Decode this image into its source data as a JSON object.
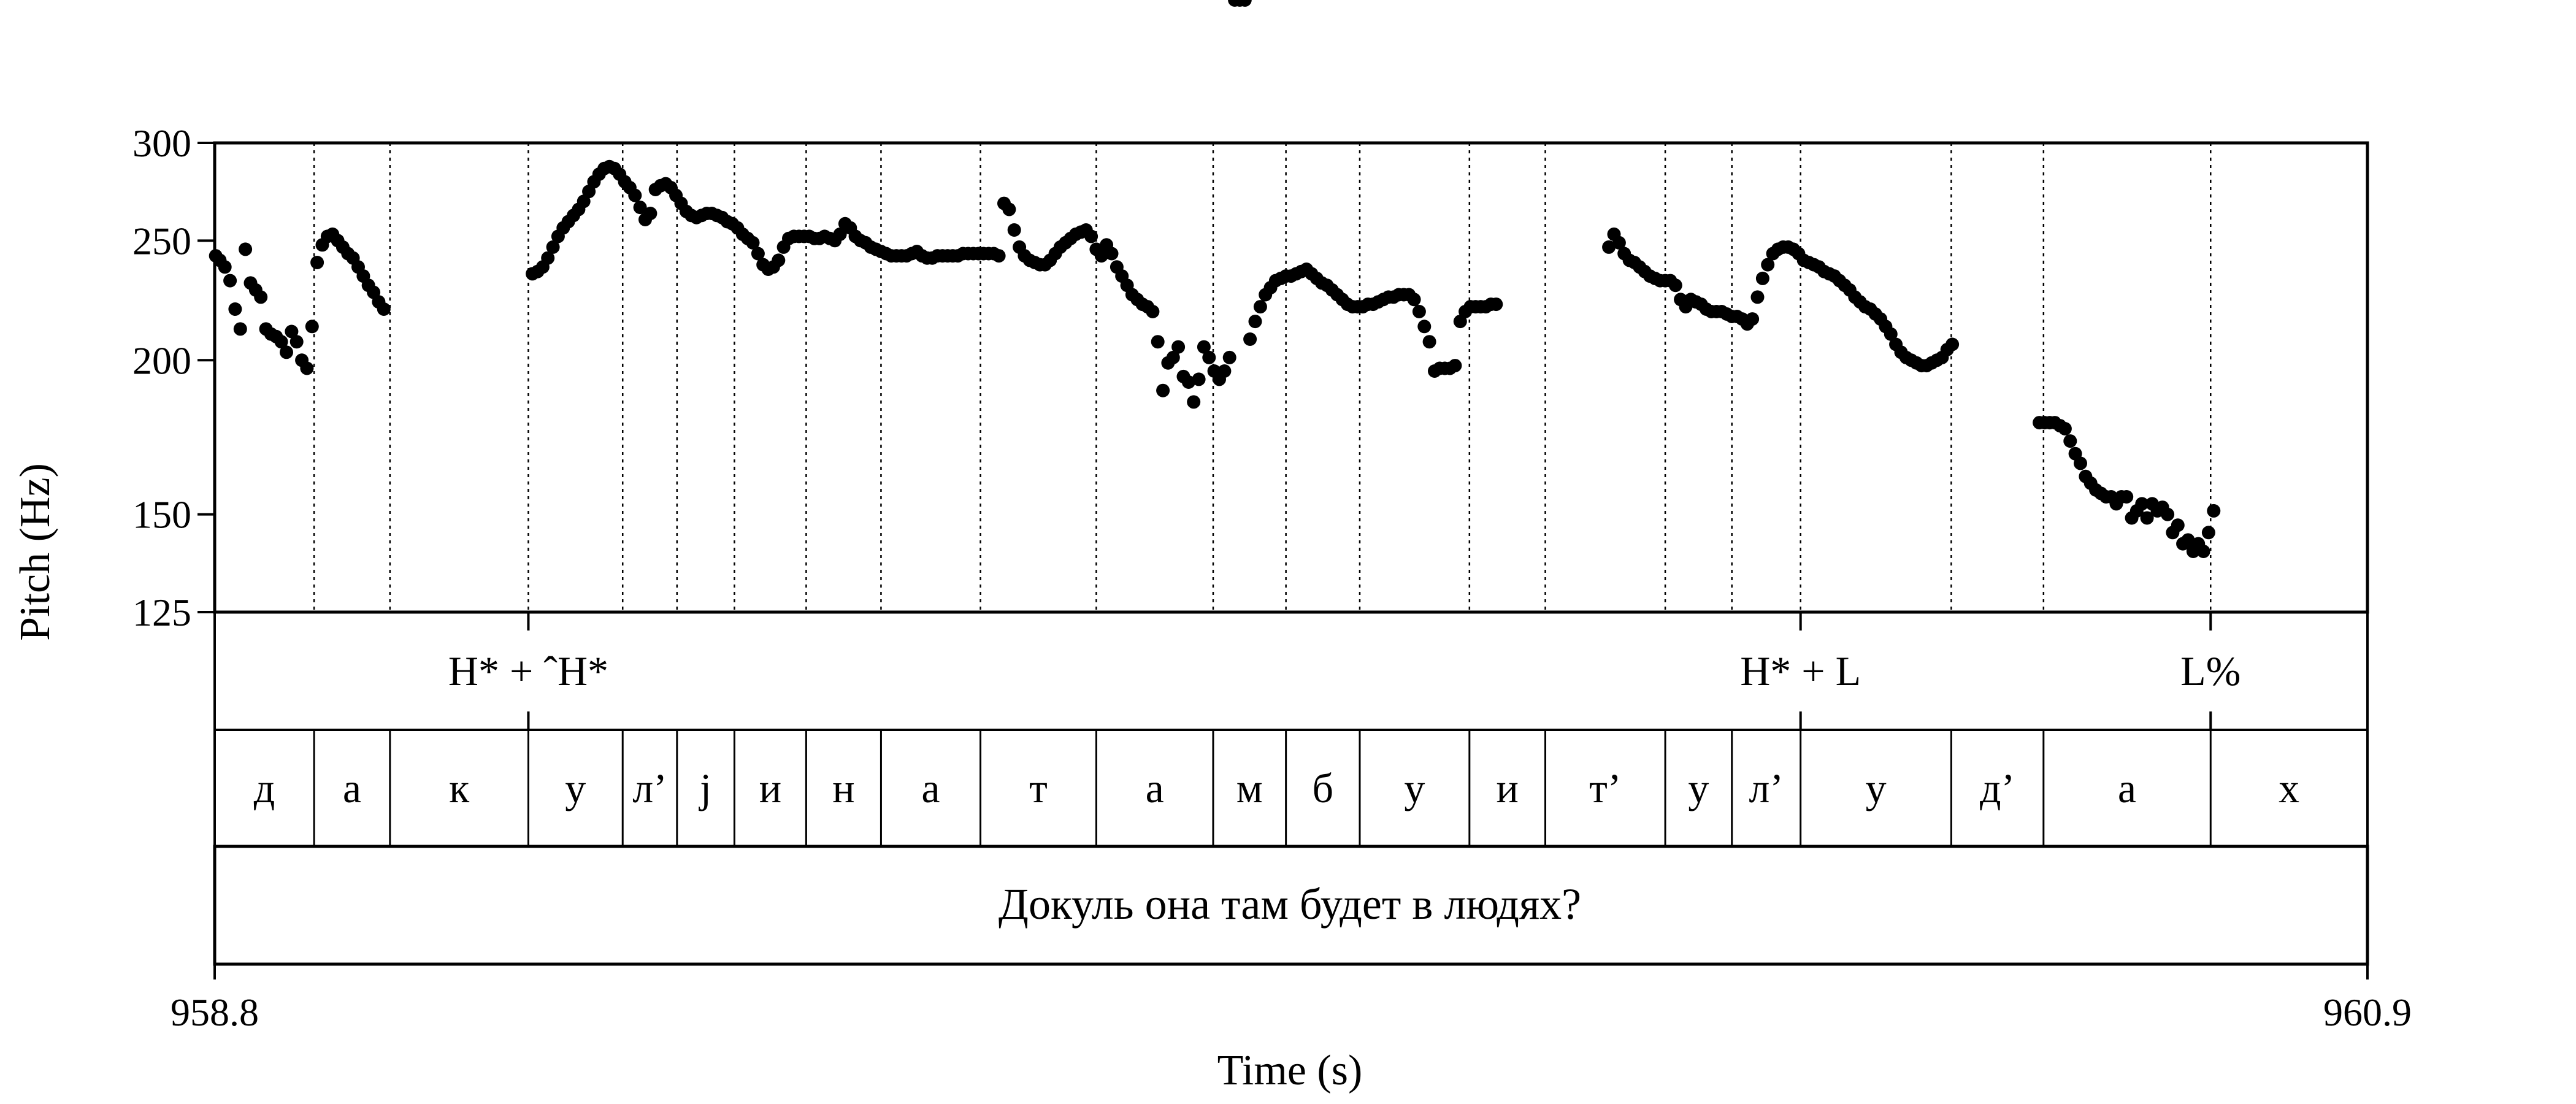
{
  "chart_data": {
    "type": "scatter",
    "xlabel": "Time (s)",
    "ylabel": "Pitch (Hz)",
    "xlim": [
      958.8,
      960.9
    ],
    "ylim": [
      125,
      300
    ],
    "x_tick_labels": [
      "958.8",
      "960.9"
    ],
    "y_ticks": [
      300,
      250,
      200,
      150,
      125
    ],
    "y_tick_labels": [
      "300",
      "250",
      "200",
      "150",
      "125"
    ],
    "segment_boundaries": [
      958.8,
      958.897,
      958.971,
      959.106,
      959.198,
      959.251,
      959.307,
      959.377,
      959.45,
      959.547,
      959.66,
      959.774,
      959.845,
      959.917,
      960.024,
      960.098,
      960.215,
      960.28,
      960.347,
      960.494,
      960.584,
      960.747,
      960.9
    ],
    "pitch_contour": [
      {
        "t": [
          958.801,
          958.805,
          958.81,
          958.815,
          958.82,
          958.825,
          958.83,
          958.835,
          958.84,
          958.845,
          958.85,
          958.855,
          958.86,
          958.865,
          958.87,
          958.875,
          958.88,
          958.885,
          958.89,
          958.895
        ],
        "f0": [
          243,
          241,
          238,
          232,
          220,
          212,
          246,
          231,
          228,
          225,
          212,
          210,
          209,
          207,
          203,
          211,
          207,
          200,
          197,
          213
        ]
      },
      {
        "t": [
          958.9,
          958.905,
          958.91,
          958.915,
          958.92,
          958.925,
          958.93,
          958.935,
          958.94,
          958.945,
          958.95,
          958.955,
          958.96,
          958.965
        ],
        "f0": [
          240,
          248,
          252,
          253,
          250,
          247,
          244,
          242,
          238,
          234,
          230,
          227,
          223,
          220
        ]
      },
      {
        "t": [
          959.11,
          959.115,
          959.12,
          959.125,
          959.13,
          959.135,
          959.14,
          959.145,
          959.15,
          959.155,
          959.16,
          959.165,
          959.17,
          959.175,
          959.18,
          959.185,
          959.19,
          959.195,
          959.2,
          959.205,
          959.21,
          959.215,
          959.22,
          959.225,
          959.23,
          959.235,
          959.24,
          959.245,
          959.25,
          959.255,
          959.26,
          959.265,
          959.27,
          959.275,
          959.28,
          959.285,
          959.29,
          959.295,
          959.3,
          959.305,
          959.31,
          959.315,
          959.32,
          959.325,
          959.33,
          959.335,
          959.34,
          959.345,
          959.35,
          959.355,
          959.36,
          959.365,
          959.37,
          959.375,
          959.38,
          959.385,
          959.39,
          959.395,
          959.4,
          959.405,
          959.41,
          959.415,
          959.42,
          959.425,
          959.43,
          959.435,
          959.44,
          959.445,
          959.45,
          959.455,
          959.46,
          959.465,
          959.47,
          959.475,
          959.48,
          959.485,
          959.49,
          959.495,
          959.5,
          959.505,
          959.51,
          959.515,
          959.52,
          959.525,
          959.53,
          959.535,
          959.54,
          959.545,
          959.55,
          959.555,
          959.56,
          959.565,
          959.57,
          959.575,
          959.58,
          959.585,
          959.59,
          959.595,
          959.6,
          959.605,
          959.61,
          959.615,
          959.62,
          959.625,
          959.63,
          959.635,
          959.64,
          959.645,
          959.65,
          959.655,
          959.66,
          959.665,
          959.67,
          959.675,
          959.68,
          959.685,
          959.69,
          959.695,
          959.7,
          959.705,
          959.71,
          959.715,
          959.72,
          959.725,
          959.73,
          959.735,
          959.74,
          959.745,
          959.75,
          959.755,
          959.76,
          959.765,
          959.77,
          959.775,
          959.78,
          959.785,
          959.79,
          959.795,
          959.8,
          959.805
        ],
        "f0": [
          235,
          236,
          238,
          242,
          247,
          252,
          256,
          259,
          262,
          265,
          269,
          274,
          279,
          283,
          286,
          287,
          286,
          283,
          279,
          276,
          272,
          266,
          260,
          263,
          275,
          277,
          278,
          276,
          272,
          268,
          264,
          262,
          261,
          262,
          263,
          263,
          262,
          261,
          259,
          258,
          256,
          253,
          251,
          249,
          244,
          239,
          237,
          238,
          241,
          247,
          251,
          252,
          252,
          252,
          252,
          251,
          251,
          252,
          251,
          250,
          253,
          258,
          256,
          252,
          250,
          249,
          247,
          246,
          245,
          244,
          243,
          243,
          243,
          243,
          244,
          245,
          243,
          242,
          242,
          243,
          243,
          243,
          243,
          243,
          244,
          244,
          244,
          244,
          244,
          244,
          244,
          243,
          268,
          265,
          255,
          247,
          243,
          241,
          240,
          239,
          239,
          241,
          244,
          247,
          249,
          251,
          253,
          254,
          255,
          252,
          246,
          243,
          248,
          244,
          238,
          234,
          230,
          226,
          224,
          222,
          221,
          219,
          207,
          189,
          199,
          201,
          205,
          194,
          192,
          185,
          193,
          205,
          201,
          196,
          193,
          196,
          201
        ]
      },
      {
        "t": [
          959.81,
          959.815,
          959.82,
          959.825,
          959.83,
          959.835,
          959.84,
          959.845,
          959.85,
          959.855,
          959.86,
          959.865,
          959.87,
          959.875,
          959.88,
          959.885,
          959.89,
          959.895,
          959.9,
          959.905,
          959.91,
          959.915,
          959.92,
          959.925,
          959.93,
          959.935,
          959.94,
          959.945,
          959.95,
          959.955,
          959.96,
          959.965,
          959.97,
          959.975,
          959.98,
          959.985,
          959.99,
          959.995,
          960.0,
          960.005,
          960.01,
          960.015,
          960.02,
          960.025,
          960.03,
          960.035,
          960.04,
          960.045,
          960.05
        ],
        "f0": [
          208,
          215,
          221,
          226,
          229,
          232,
          233,
          234,
          234,
          235,
          236,
          237,
          235,
          233,
          231,
          230,
          228,
          226,
          224,
          222,
          221,
          221,
          221,
          222,
          222,
          223,
          224,
          225,
          225,
          226,
          226,
          226,
          224,
          219,
          213,
          207,
          196,
          197,
          197,
          197,
          198,
          215,
          219,
          221,
          221,
          221,
          221,
          222,
          222
        ]
      },
      {
        "t": [
          960.16,
          960.165,
          960.17,
          960.175,
          960.18,
          960.185,
          960.19,
          960.195,
          960.2,
          960.205,
          960.21,
          960.215,
          960.22,
          960.225,
          960.23,
          960.235,
          960.24,
          960.245,
          960.25,
          960.255,
          960.26,
          960.265,
          960.27,
          960.275,
          960.28,
          960.285,
          960.29,
          960.295,
          960.3,
          960.305,
          960.31,
          960.315,
          960.32,
          960.325,
          960.33,
          960.335,
          960.34,
          960.345,
          960.35,
          960.355,
          960.36,
          960.365,
          960.37,
          960.375,
          960.38,
          960.385,
          960.39,
          960.395,
          960.4,
          960.405,
          960.41,
          960.415,
          960.42,
          960.425,
          960.43,
          960.435,
          960.44,
          960.445,
          960.45,
          960.455,
          960.46,
          960.465,
          960.47,
          960.475,
          960.48,
          960.485,
          960.49,
          960.495
        ],
        "f0": [
          247,
          253,
          249,
          244,
          241,
          240,
          238,
          236,
          234,
          233,
          232,
          232,
          232,
          230,
          224,
          221,
          224,
          223,
          222,
          220,
          219,
          219,
          219,
          218,
          217,
          217,
          216,
          214,
          216,
          225,
          233,
          239,
          244,
          246,
          247,
          247,
          246,
          244,
          241,
          240,
          239,
          238,
          236,
          235,
          234,
          232,
          230,
          228,
          225,
          223,
          221,
          220,
          218,
          216,
          213,
          210,
          206,
          203,
          201,
          200,
          199,
          198,
          198,
          199,
          200,
          201,
          204,
          206
        ]
      },
      {
        "t": [
          960.58,
          960.585,
          960.59,
          960.595,
          960.6,
          960.605,
          960.61,
          960.615,
          960.62,
          960.625,
          960.63,
          960.635,
          960.64,
          960.645,
          960.65,
          960.655,
          960.66,
          960.665,
          960.67,
          960.675,
          960.68,
          960.685,
          960.69,
          960.695,
          960.7,
          960.705,
          960.71,
          960.715,
          960.72,
          960.725,
          960.73,
          960.735,
          960.74,
          960.745,
          960.75
        ],
        "f0": [
          178,
          178,
          178,
          178,
          177,
          176,
          172,
          168,
          165,
          161,
          159,
          157,
          156,
          155,
          155,
          153,
          155,
          155,
          149,
          151,
          153,
          149,
          153,
          151,
          152,
          150,
          145,
          147,
          142,
          143,
          140,
          142,
          140,
          145,
          151
        ]
      }
    ]
  },
  "tones": [
    {
      "label": "H* + ˆH*",
      "t": 959.106
    },
    {
      "label": "H* + L",
      "t": 960.347
    },
    {
      "label": "L%",
      "t": 960.747
    }
  ],
  "segments": [
    "д",
    "а",
    "к",
    "у",
    "л’",
    "j",
    "и",
    "н",
    "а",
    "т",
    "а",
    "м",
    "б",
    "у",
    "и",
    "т’",
    "у",
    "л’",
    "у",
    "д’",
    "а",
    "х"
  ],
  "sentence": "Докуль она там будет в людях?"
}
